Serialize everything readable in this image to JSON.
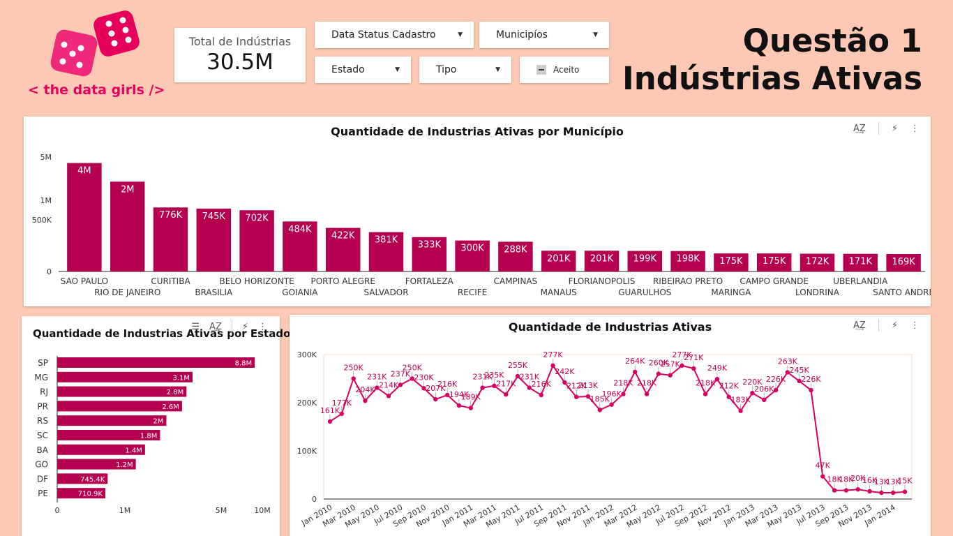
{
  "brand": {
    "logo_text": "< the data girls />",
    "accent": "#e6005c",
    "bar_color": "#b5004f",
    "line_color": "#d6005e"
  },
  "header": {
    "title_line1": "Questão 1",
    "title_line2": "Indústrias Ativas"
  },
  "scorecard": {
    "label": "Total de Indústrias",
    "value": "30.5M"
  },
  "filters": {
    "data_status": "Data Status Cadastro",
    "municipios": "Municipíos",
    "estado": "Estado",
    "tipo": "Tipo",
    "aceito": "Aceito"
  },
  "icons": {
    "sort": "sort-az-icon",
    "bolt": "lightning-icon",
    "more": "more-vert-icon",
    "tune": "tune-icon",
    "dice": "dice-icon"
  },
  "chart_data": [
    {
      "type": "bar",
      "title": "Quantidade de Industrias Ativas por Município",
      "scale": "log",
      "y_ticks": [
        "0",
        "500K",
        "1M",
        "5M"
      ],
      "categories": [
        "SAO PAULO",
        "RIO DE JANEIRO",
        "CURITIBA",
        "BRASILIA",
        "BELO HORIZONTE",
        "GOIANIA",
        "PORTO ALEGRE",
        "SALVADOR",
        "FORTALEZA",
        "RECIFE",
        "CAMPINAS",
        "MANAUS",
        "FLORIANOPOLIS",
        "GUARULHOS",
        "RIBEIRAO PRETO",
        "MARINGA",
        "CAMPO GRANDE",
        "LONDRINA",
        "UBERLANDIA",
        "SANTO ANDRE"
      ],
      "values": [
        4000000,
        2000000,
        776000,
        745000,
        702000,
        484000,
        422000,
        381000,
        333000,
        300000,
        288000,
        201000,
        201000,
        199000,
        198000,
        175000,
        175000,
        172000,
        171000,
        169000
      ],
      "labels": [
        "4M",
        "2M",
        "776K",
        "745K",
        "702K",
        "484K",
        "422K",
        "381K",
        "333K",
        "300K",
        "288K",
        "201K",
        "201K",
        "199K",
        "198K",
        "175K",
        "175K",
        "172K",
        "171K",
        "169K"
      ]
    },
    {
      "type": "bar",
      "orientation": "horizontal",
      "title": "Quantidade de Industrias Ativas por Estado",
      "scale": "log",
      "x_ticks": [
        "0",
        "1M",
        "5M",
        "10M"
      ],
      "categories": [
        "SP",
        "MG",
        "RJ",
        "PR",
        "RS",
        "SC",
        "BA",
        "GO",
        "DF",
        "PE"
      ],
      "values": [
        8800000,
        3100000,
        2800000,
        2600000,
        2000000,
        1800000,
        1400000,
        1200000,
        745400,
        710900
      ],
      "labels": [
        "8.8M",
        "3.1M",
        "2.8M",
        "2.6M",
        "2M",
        "1.8M",
        "1.4M",
        "1.2M",
        "745.4K",
        "710.9K"
      ]
    },
    {
      "type": "line",
      "title": "Quantidade de Industrias Ativas",
      "y_ticks": [
        "0",
        "100K",
        "200K",
        "300K"
      ],
      "ylim": [
        0,
        300000
      ],
      "x_ticks": [
        "Jan 2010",
        "Mar 2010",
        "May 2010",
        "Jul 2010",
        "Sep 2010",
        "Nov 2010",
        "Jan 2011",
        "Mar 2011",
        "May 2011",
        "Jul 2011",
        "Sep 2011",
        "Nov 2011",
        "Jan 2012",
        "Mar 2012",
        "May 2012",
        "Jul 2012",
        "Sep 2012",
        "Nov 2012",
        "Jan 2013",
        "Mar 2013",
        "May 2013",
        "Jul 2013",
        "Sep 2013",
        "Nov 2013",
        "Jan 2014"
      ],
      "values": [
        161000,
        177000,
        250000,
        204000,
        231000,
        214000,
        237000,
        250000,
        230000,
        207000,
        216000,
        194000,
        189000,
        231000,
        235000,
        217000,
        255000,
        231000,
        216000,
        277000,
        242000,
        212000,
        213000,
        185000,
        196000,
        218000,
        264000,
        218000,
        260000,
        257000,
        277000,
        271000,
        218000,
        249000,
        212000,
        183000,
        220000,
        206000,
        226000,
        263000,
        245000,
        226000,
        47000,
        18000,
        18000,
        20000,
        16000,
        13000,
        13000,
        15000
      ],
      "labels": [
        "161K",
        "177K",
        "250K",
        "204K",
        "231K",
        "214K",
        "237K",
        "250K",
        "230K",
        "207K",
        "216K",
        "194K",
        "189K",
        "231K",
        "235K",
        "217K",
        "255K",
        "231K",
        "216K",
        "277K",
        "242K",
        "212K",
        "213K",
        "185K",
        "196K",
        "218K",
        "264K",
        "218K",
        "260K",
        "257K",
        "277K",
        "271K",
        "218K",
        "249K",
        "212K",
        "183K",
        "220K",
        "206K",
        "226K",
        "263K",
        "245K",
        "226K",
        "47K",
        "18K",
        "18K",
        "20K",
        "16K",
        "13K",
        "13K",
        "15K"
      ]
    }
  ]
}
